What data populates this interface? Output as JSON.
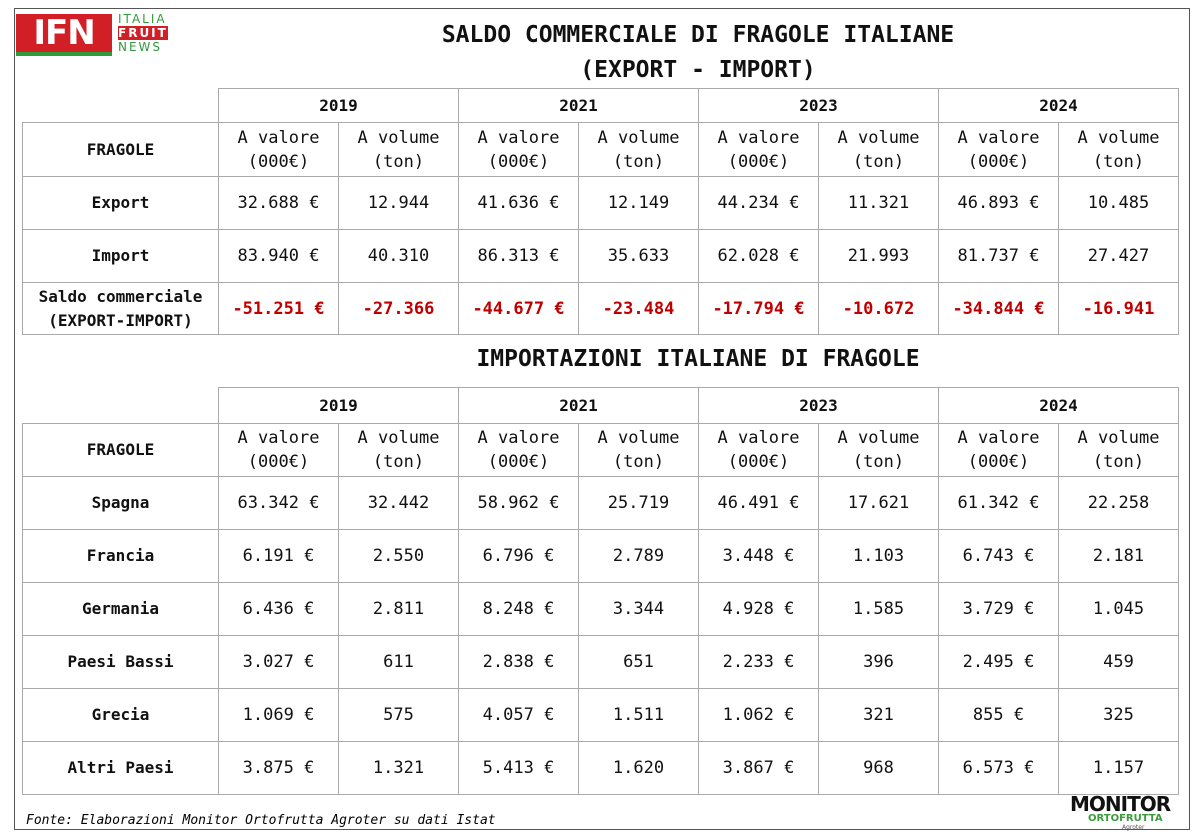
{
  "logo": {
    "mark": "IFN",
    "lines": [
      "ITALIA",
      "FRUIT",
      "NEWS"
    ]
  },
  "title": {
    "line1": "SALDO COMMERCIALE DI FRAGOLE ITALIANE",
    "line2": "(EXPORT - IMPORT)"
  },
  "table1": {
    "years": [
      "2019",
      "2021",
      "2023",
      "2024"
    ],
    "corner": "FRAGOLE",
    "columns": [
      [
        "A valore",
        "(000€)"
      ],
      [
        "A volume",
        "(ton)"
      ],
      [
        "A valore",
        "(000€)"
      ],
      [
        "A volume",
        "(ton)"
      ],
      [
        "A valore",
        "(000€)"
      ],
      [
        "A volume",
        "(ton)"
      ],
      [
        "A valore",
        "(000€)"
      ],
      [
        "A volume",
        "(ton)"
      ]
    ],
    "rows": [
      {
        "label": [
          "Export"
        ],
        "cells": [
          "32.688 €",
          "12.944",
          "41.636 €",
          "12.149",
          "44.234 €",
          "11.321",
          "46.893 €",
          "10.485"
        ]
      },
      {
        "label": [
          "Import"
        ],
        "cells": [
          "83.940 €",
          "40.310",
          "86.313 €",
          "35.633",
          "62.028 €",
          "21.993",
          "81.737 €",
          "27.427"
        ]
      },
      {
        "label": [
          "Saldo commerciale",
          "(EXPORT-IMPORT)"
        ],
        "cells": [
          "-51.251 €",
          "-27.366",
          "-44.677 €",
          "-23.484",
          "-17.794 €",
          "-10.672",
          "-34.844 €",
          "-16.941"
        ]
      }
    ]
  },
  "subtitle": "IMPORTAZIONI ITALIANE DI FRAGOLE",
  "table2": {
    "years": [
      "2019",
      "2021",
      "2023",
      "2024"
    ],
    "corner": "FRAGOLE",
    "columns": [
      [
        "A valore",
        "(000€)"
      ],
      [
        "A volume",
        "(ton)"
      ],
      [
        "A valore",
        "(000€)"
      ],
      [
        "A volume",
        "(ton)"
      ],
      [
        "A valore",
        "(000€)"
      ],
      [
        "A volume",
        "(ton)"
      ],
      [
        "A valore",
        "(000€)"
      ],
      [
        "A volume",
        "(ton)"
      ]
    ],
    "rows": [
      {
        "label": [
          "Spagna"
        ],
        "cells": [
          "63.342 €",
          "32.442",
          "58.962 €",
          "25.719",
          "46.491 €",
          "17.621",
          "61.342 €",
          "22.258"
        ]
      },
      {
        "label": [
          "Francia"
        ],
        "cells": [
          "6.191 €",
          "2.550",
          "6.796 €",
          "2.789",
          "3.448 €",
          "1.103",
          "6.743 €",
          "2.181"
        ]
      },
      {
        "label": [
          "Germania"
        ],
        "cells": [
          "6.436 €",
          "2.811",
          "8.248 €",
          "3.344",
          "4.928 €",
          "1.585",
          "3.729 €",
          "1.045"
        ]
      },
      {
        "label": [
          "Paesi Bassi"
        ],
        "cells": [
          "3.027 €",
          "611",
          "2.838 €",
          "651",
          "2.233 €",
          "396",
          "2.495 €",
          "459"
        ]
      },
      {
        "label": [
          "Grecia"
        ],
        "cells": [
          "1.069 €",
          "575",
          "4.057 €",
          "1.511",
          "1.062 €",
          "321",
          "855 €",
          "325"
        ]
      },
      {
        "label": [
          "Altri Paesi"
        ],
        "cells": [
          "3.875 €",
          "1.321",
          "5.413 €",
          "1.620",
          "3.867 €",
          "968",
          "6.573 €",
          "1.157"
        ]
      }
    ]
  },
  "source": "Fonte: Elaborazioni Monitor Ortofrutta Agroter su dati Istat",
  "footer_logo": {
    "name": "MONITOR",
    "sub": "ORTOFRUTTA",
    "by": "Agroter"
  }
}
